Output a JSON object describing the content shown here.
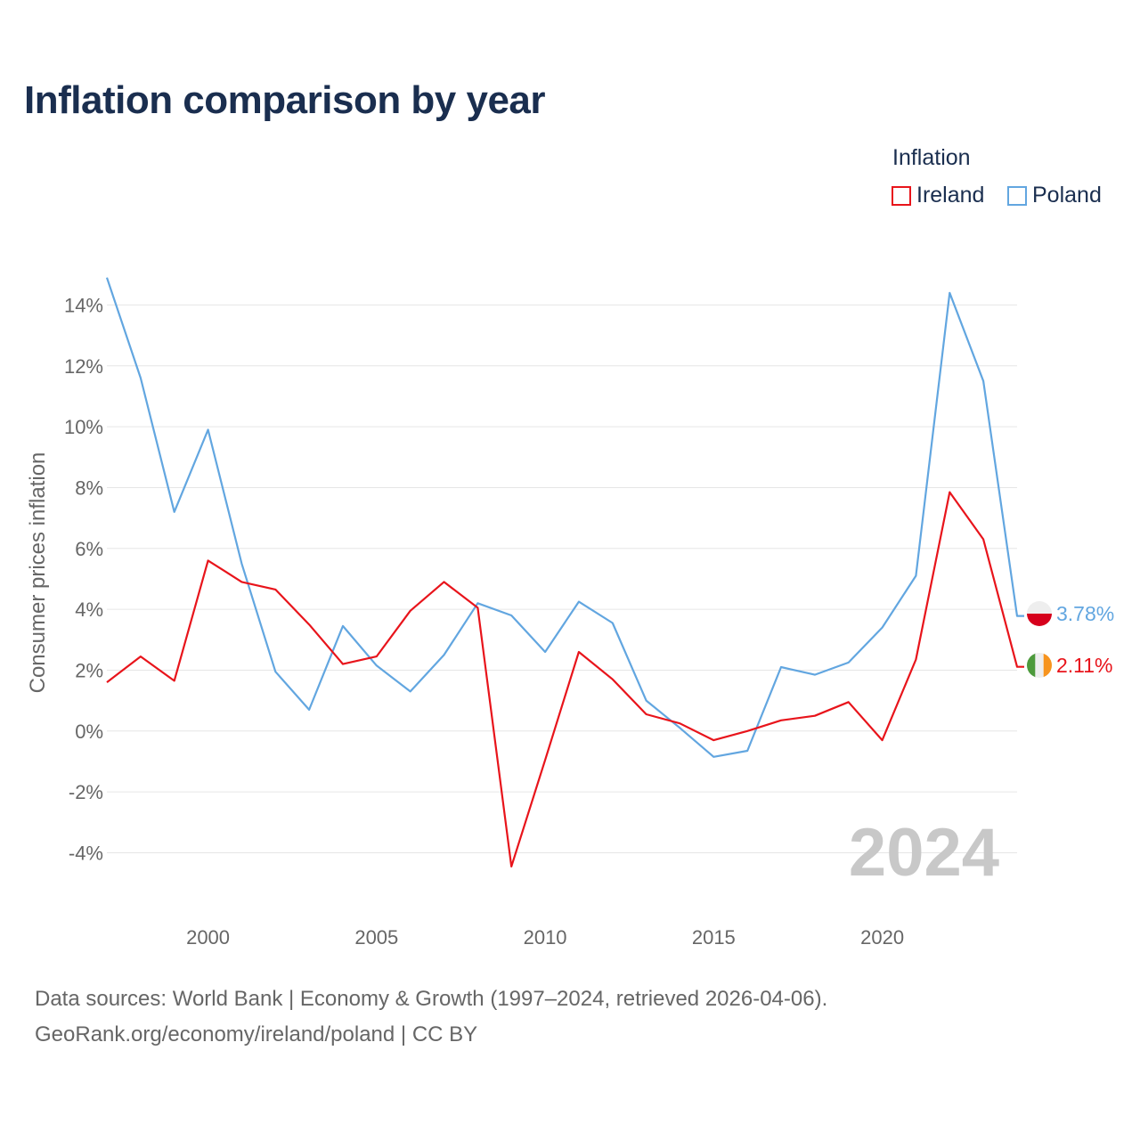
{
  "title": "Inflation comparison by year",
  "legend": {
    "title": "Inflation",
    "items": [
      {
        "name": "Ireland",
        "color": "#e8141b"
      },
      {
        "name": "Poland",
        "color": "#62a6e0"
      }
    ]
  },
  "chart_data": {
    "type": "line",
    "title": "Inflation comparison by year",
    "xlabel": "",
    "ylabel": "Consumer prices inflation",
    "xlim": [
      1997,
      2024
    ],
    "ylim": [
      -6,
      15
    ],
    "x_ticks": [
      2000,
      2005,
      2010,
      2015,
      2020
    ],
    "x_tick_labels": [
      "2000",
      "2005",
      "2010",
      "2015",
      "2020"
    ],
    "y_ticks": [
      -4,
      -2,
      0,
      2,
      4,
      6,
      8,
      10,
      12,
      14
    ],
    "y_tick_labels": [
      "-4%",
      "-2%",
      "0%",
      "2%",
      "4%",
      "6%",
      "8%",
      "10%",
      "12%",
      "14%"
    ],
    "grid": true,
    "legend_position": "top-right",
    "watermark_year": "2024",
    "x": [
      1997,
      1998,
      1999,
      2000,
      2001,
      2002,
      2003,
      2004,
      2005,
      2006,
      2007,
      2008,
      2009,
      2010,
      2011,
      2012,
      2013,
      2014,
      2015,
      2016,
      2017,
      2018,
      2019,
      2020,
      2021,
      2022,
      2023,
      2024
    ],
    "series": [
      {
        "name": "Ireland",
        "color": "#e8141b",
        "end_label": "2.11%",
        "values": [
          1.6,
          2.45,
          1.65,
          5.6,
          4.9,
          4.65,
          3.5,
          2.2,
          2.45,
          3.95,
          4.9,
          4.05,
          -4.45,
          -0.95,
          2.6,
          1.7,
          0.55,
          0.25,
          -0.3,
          0.0,
          0.35,
          0.5,
          0.95,
          -0.3,
          2.35,
          7.85,
          6.3,
          2.11
        ]
      },
      {
        "name": "Poland",
        "color": "#62a6e0",
        "end_label": "3.78%",
        "values": [
          14.9,
          11.6,
          7.2,
          9.9,
          5.5,
          1.95,
          0.7,
          3.45,
          2.15,
          1.3,
          2.5,
          4.2,
          3.8,
          2.6,
          4.25,
          3.55,
          1.0,
          0.1,
          -0.85,
          -0.65,
          2.1,
          1.85,
          2.25,
          3.4,
          5.1,
          14.4,
          11.5,
          3.78
        ]
      }
    ]
  },
  "footer": {
    "line1": "Data sources: World Bank | Economy & Growth (1997–2024, retrieved 2026-04-06).",
    "line2": "GeoRank.org/economy/ireland/poland | CC BY"
  }
}
